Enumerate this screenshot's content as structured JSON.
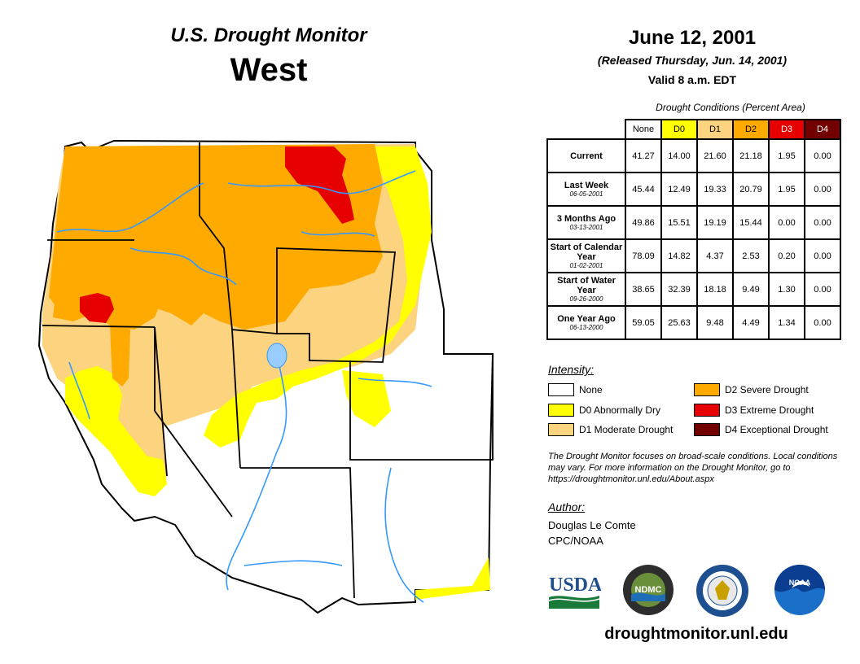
{
  "header": {
    "title_line1": "U.S. Drought Monitor",
    "title_line2": "West",
    "date": "June 12, 2001",
    "released": "(Released Thursday, Jun. 14, 2001)",
    "valid": "Valid 8 a.m. EDT"
  },
  "stats": {
    "caption": "Drought Conditions (Percent Area)",
    "columns": [
      {
        "label": "None",
        "color": "#ffffff",
        "text_color": "#000000"
      },
      {
        "label": "D0",
        "color": "#ffff00",
        "text_color": "#000000"
      },
      {
        "label": "D1",
        "color": "#fcd37f",
        "text_color": "#000000"
      },
      {
        "label": "D2",
        "color": "#ffaa00",
        "text_color": "#000000"
      },
      {
        "label": "D3",
        "color": "#e60000",
        "text_color": "#ffffff"
      },
      {
        "label": "D4",
        "color": "#730000",
        "text_color": "#ffffff"
      }
    ],
    "rows": [
      {
        "label": "Current",
        "date": "",
        "values": [
          "41.27",
          "14.00",
          "21.60",
          "21.18",
          "1.95",
          "0.00"
        ]
      },
      {
        "label": "Last Week",
        "date": "06-05-2001",
        "values": [
          "45.44",
          "12.49",
          "19.33",
          "20.79",
          "1.95",
          "0.00"
        ]
      },
      {
        "label": "3 Months Ago",
        "date": "03-13-2001",
        "values": [
          "49.86",
          "15.51",
          "19.19",
          "15.44",
          "0.00",
          "0.00"
        ]
      },
      {
        "label": "Start of Calendar Year",
        "date": "01-02-2001",
        "values": [
          "78.09",
          "14.82",
          "4.37",
          "2.53",
          "0.20",
          "0.00"
        ]
      },
      {
        "label": "Start of Water Year",
        "date": "09-26-2000",
        "values": [
          "38.65",
          "32.39",
          "18.18",
          "9.49",
          "1.30",
          "0.00"
        ]
      },
      {
        "label": "One Year Ago",
        "date": "06-13-2000",
        "values": [
          "59.05",
          "25.63",
          "9.48",
          "4.49",
          "1.34",
          "0.00"
        ]
      }
    ]
  },
  "legend": {
    "title": "Intensity:",
    "items": [
      {
        "label": "None",
        "color": "#ffffff"
      },
      {
        "label": "D0 Abnormally Dry",
        "color": "#ffff00"
      },
      {
        "label": "D1 Moderate Drought",
        "color": "#fcd37f"
      },
      {
        "label": "D2 Severe Drought",
        "color": "#ffaa00"
      },
      {
        "label": "D3 Extreme Drought",
        "color": "#e60000"
      },
      {
        "label": "D4 Exceptional Drought",
        "color": "#730000"
      }
    ]
  },
  "note": "The Drought Monitor focuses on broad-scale conditions. Local conditions may vary. For more information on the Drought Monitor, go to https://droughtmonitor.unl.edu/About.aspx",
  "author": {
    "title": "Author:",
    "name": "Douglas Le Comte",
    "org": "CPC/NOAA"
  },
  "logos": {
    "usda": "USDA",
    "ndmc": "NDMC",
    "noaa": "NOAA"
  },
  "footer_url": "droughtmonitor.unl.edu",
  "colors": {
    "river": "#3399ff",
    "county_line": "#444444",
    "state_line": "#000000"
  }
}
